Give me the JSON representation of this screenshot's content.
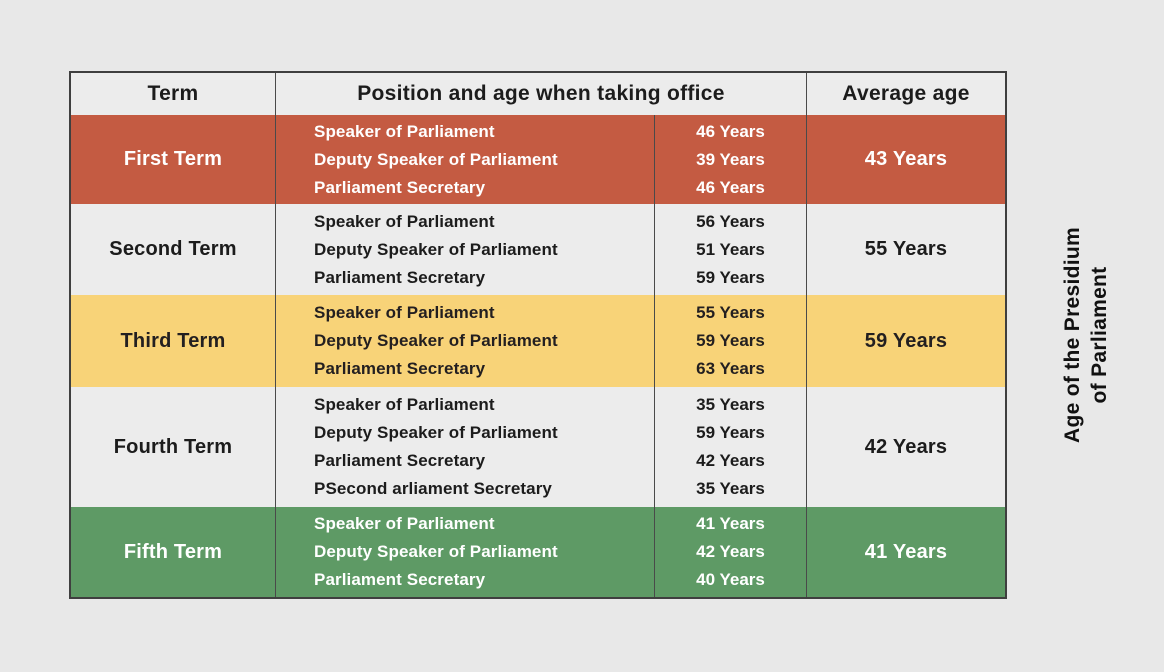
{
  "page": {
    "background": "#e8e8e8"
  },
  "side_label": {
    "line1": "Age of the Presidium",
    "line2": "of Parliament"
  },
  "table": {
    "header": {
      "term": "Term",
      "position_age": "Position and age when taking office",
      "average": "Average age"
    },
    "rows": [
      {
        "term": "First Term",
        "average": "43 Years",
        "entries": [
          {
            "position": "Speaker of Parliament",
            "age": "46 Years"
          },
          {
            "position": "Deputy Speaker of Parliament",
            "age": "39 Years"
          },
          {
            "position": "Parliament Secretary",
            "age": "46 Years"
          }
        ]
      },
      {
        "term": "Second Term",
        "average": "55 Years",
        "entries": [
          {
            "position": "Speaker of Parliament",
            "age": "56 Years"
          },
          {
            "position": "Deputy Speaker of Parliament",
            "age": "51 Years"
          },
          {
            "position": "Parliament Secretary",
            "age": "59 Years"
          }
        ]
      },
      {
        "term": "Third Term",
        "average": "59 Years",
        "entries": [
          {
            "position": "Speaker of Parliament",
            "age": "55 Years"
          },
          {
            "position": "Deputy Speaker of Parliament",
            "age": "59 Years"
          },
          {
            "position": "Parliament Secretary",
            "age": "63 Years"
          }
        ]
      },
      {
        "term": "Fourth Term",
        "average": "42 Years",
        "entries": [
          {
            "position": "Speaker of Parliament",
            "age": "35 Years"
          },
          {
            "position": "Deputy Speaker of Parliament",
            "age": "59 Years"
          },
          {
            "position": "Parliament Secretary",
            "age": "42 Years"
          },
          {
            "position": "PSecond arliament Secretary",
            "age": "35 Years"
          }
        ]
      },
      {
        "term": "Fifth Term",
        "average": "41 Years",
        "entries": [
          {
            "position": "Speaker of Parliament",
            "age": "41 Years"
          },
          {
            "position": "Deputy Speaker of Parliament",
            "age": "42 Years"
          },
          {
            "position": "Parliament Secretary",
            "age": "40 Years"
          }
        ]
      }
    ]
  },
  "colors": {
    "row_red": "#c45b42",
    "row_yellow": "#f8d378",
    "row_green": "#5e9a65",
    "row_gray": "#ececec",
    "header_bg": "#ececec",
    "border": "#3f3f3f",
    "text_dark": "#1c1c1c",
    "text_light": "#ffffff",
    "page_bg": "#e8e8e8"
  },
  "chart_data": {
    "type": "table",
    "title": "Age of the Presidium of Parliament",
    "columns": [
      "Term",
      "Position and age when taking office",
      "Average age"
    ],
    "rows": [
      {
        "term": "First Term",
        "positions": [
          {
            "position": "Speaker of Parliament",
            "age_years": 46
          },
          {
            "position": "Deputy Speaker of Parliament",
            "age_years": 39
          },
          {
            "position": "Parliament Secretary",
            "age_years": 46
          }
        ],
        "average_age_years": 43
      },
      {
        "term": "Second Term",
        "positions": [
          {
            "position": "Speaker of Parliament",
            "age_years": 56
          },
          {
            "position": "Deputy Speaker of Parliament",
            "age_years": 51
          },
          {
            "position": "Parliament Secretary",
            "age_years": 59
          }
        ],
        "average_age_years": 55
      },
      {
        "term": "Third Term",
        "positions": [
          {
            "position": "Speaker of Parliament",
            "age_years": 55
          },
          {
            "position": "Deputy Speaker of Parliament",
            "age_years": 59
          },
          {
            "position": "Parliament Secretary",
            "age_years": 63
          }
        ],
        "average_age_years": 59
      },
      {
        "term": "Fourth Term",
        "positions": [
          {
            "position": "Speaker of Parliament",
            "age_years": 35
          },
          {
            "position": "Deputy Speaker of Parliament",
            "age_years": 59
          },
          {
            "position": "Parliament Secretary",
            "age_years": 42
          },
          {
            "position": "PSecond arliament Secretary",
            "age_years": 35
          }
        ],
        "average_age_years": 42
      },
      {
        "term": "Fifth Term",
        "positions": [
          {
            "position": "Speaker of Parliament",
            "age_years": 41
          },
          {
            "position": "Deputy Speaker of Parliament",
            "age_years": 42
          },
          {
            "position": "Parliament Secretary",
            "age_years": 40
          }
        ],
        "average_age_years": 41
      }
    ],
    "row_theme_colors": [
      "#c45b42",
      "#ececec",
      "#f8d378",
      "#ececec",
      "#5e9a65"
    ],
    "side_title_rotated": true
  }
}
